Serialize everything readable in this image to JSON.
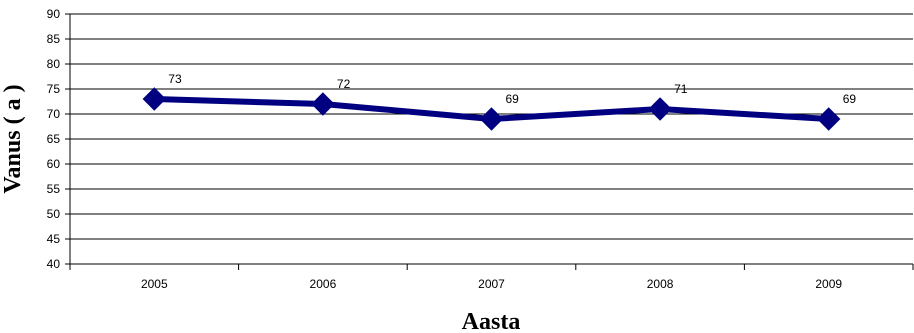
{
  "chart_data": {
    "type": "line",
    "title": "",
    "xlabel": "Aasta",
    "ylabel": "Vanus ( a )",
    "categories": [
      "2005",
      "2006",
      "2007",
      "2008",
      "2009"
    ],
    "series": [
      {
        "values": [
          73,
          72,
          69,
          71,
          69
        ],
        "data_labels": [
          "73",
          "72",
          "69",
          "71",
          "69"
        ],
        "color": "#000080"
      }
    ],
    "ylim": [
      40,
      90
    ],
    "yticks": [
      "40",
      "45",
      "50",
      "55",
      "60",
      "65",
      "70",
      "75",
      "80",
      "85",
      "90"
    ],
    "grid": true,
    "legend": "none"
  }
}
